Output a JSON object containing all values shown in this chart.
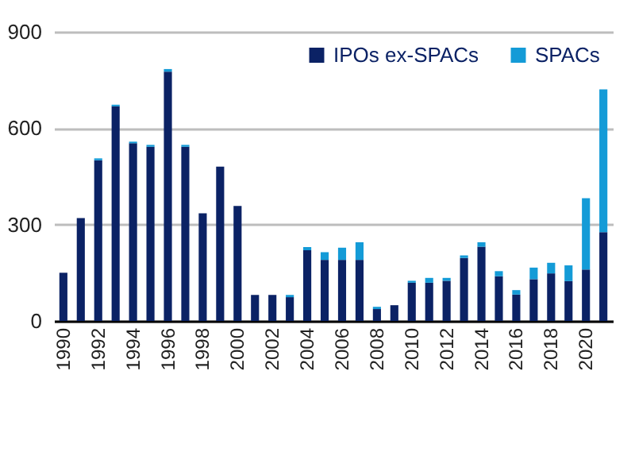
{
  "chart_data": {
    "type": "bar",
    "stacked": true,
    "categories": [
      "1990",
      null,
      "1992",
      null,
      "1994",
      null,
      "1996",
      null,
      "1998",
      null,
      "2000",
      null,
      "2002",
      null,
      "2004",
      null,
      "2006",
      null,
      "2008",
      null,
      "2010",
      null,
      "2012",
      null,
      "2014",
      null,
      "2016",
      null,
      "2018",
      null,
      "2020",
      null
    ],
    "series": [
      {
        "name": "IPOs ex-SPACs",
        "color": "#0b2265",
        "values": [
          150,
          320,
          500,
          668,
          553,
          542,
          776,
          542,
          335,
          480,
          358,
          81,
          81,
          74,
          220,
          190,
          190,
          190,
          37,
          49,
          119,
          119,
          125,
          196,
          231,
          139,
          82,
          130,
          148,
          124,
          160,
          276
        ]
      },
      {
        "name": "SPACs",
        "color": "#149bd7",
        "values": [
          null,
          null,
          6,
          5,
          5,
          6,
          8,
          6,
          null,
          null,
          null,
          null,
          null,
          7,
          10,
          24,
          38,
          55,
          7,
          null,
          6,
          15,
          9,
          8,
          14,
          16,
          14,
          36,
          33,
          49,
          222,
          445
        ]
      }
    ],
    "ylim": [
      0,
      900
    ],
    "yticks": [
      0,
      300,
      600,
      900
    ],
    "grid": "y",
    "legend": "top right"
  }
}
